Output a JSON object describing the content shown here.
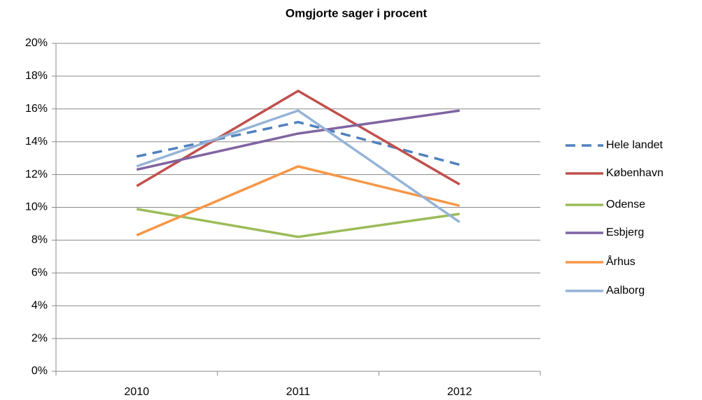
{
  "chart_data": {
    "type": "line",
    "title": "Omgjorte sager i procent",
    "categories": [
      "2010",
      "2011",
      "2012"
    ],
    "series": [
      {
        "name": "Hele landet",
        "color": "#4f81bd",
        "dashed": true,
        "values": [
          13.1,
          15.2,
          12.6
        ]
      },
      {
        "name": "København",
        "color": "#c0504d",
        "values": [
          11.3,
          17.1,
          11.4
        ]
      },
      {
        "name": "Odense",
        "color": "#9bbb59",
        "values": [
          9.9,
          8.2,
          9.6
        ]
      },
      {
        "name": "Esbjerg",
        "color": "#8064a2",
        "values": [
          12.3,
          14.5,
          15.9
        ]
      },
      {
        "name": "Århus",
        "color": "#f79646",
        "values": [
          8.3,
          12.5,
          10.1
        ]
      },
      {
        "name": "Aalborg",
        "color": "#95b3d7",
        "values": [
          12.5,
          15.9,
          9.1
        ]
      }
    ],
    "ylim": [
      0,
      20
    ],
    "yticks": [
      {
        "value": 0,
        "label": "0%"
      },
      {
        "value": 2,
        "label": "2%"
      },
      {
        "value": 4,
        "label": "4%"
      },
      {
        "value": 6,
        "label": "6%"
      },
      {
        "value": 8,
        "label": "8%"
      },
      {
        "value": 10,
        "label": "10%"
      },
      {
        "value": 12,
        "label": "12%"
      },
      {
        "value": 14,
        "label": "14%"
      },
      {
        "value": 16,
        "label": "16%"
      },
      {
        "value": 18,
        "label": "18%"
      },
      {
        "value": 20,
        "label": "20%"
      }
    ],
    "grid": true,
    "legend": "right"
  }
}
